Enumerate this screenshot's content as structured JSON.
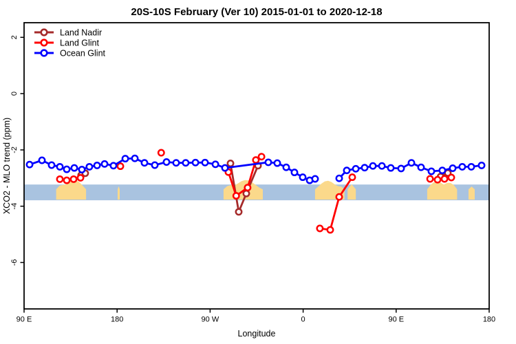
{
  "title": "20S-10S February (Ver 10)   2015-01-01 to 2020-12-18",
  "chart_data": {
    "type": "line",
    "title": "20S-10S February (Ver 10)   2015-01-01 to 2020-12-18",
    "xlabel": "Longitude",
    "ylabel": "XCO2 - MLO trend (ppm)",
    "x_axis": {
      "domain_deg": [
        0,
        450
      ],
      "ticks_deg": [
        0,
        90,
        180,
        270,
        360,
        450
      ],
      "tick_labels": [
        "90 E",
        "180",
        "90 W",
        "0",
        "90 E",
        "180"
      ],
      "note": "longitude axis starts at 90E and wraps across the dateline to 180"
    },
    "y_axis": {
      "lim": [
        -7.65,
        2.52
      ],
      "ticks": [
        2,
        0,
        -2,
        -4,
        -6
      ]
    },
    "legend": [
      {
        "name": "Land Nadir",
        "color": "#A52A2A"
      },
      {
        "name": "Land Glint",
        "color": "#FF0000"
      },
      {
        "name": "Ocean Glint",
        "color": "#0000FF"
      }
    ],
    "grid": false,
    "legend_position": "top-left-inside",
    "series": [
      {
        "name": "Land Nadir",
        "color": "#A52A2A",
        "segments": [
          [
            [
              55.2,
              -2.9
            ],
            [
              59.2,
              -2.83
            ]
          ],
          [
            [
              199.7,
              -2.48
            ],
            [
              207.7,
              -4.2
            ],
            [
              215.0,
              -3.55
            ],
            [
              226.3,
              -2.56
            ]
          ],
          [
            [
              403.0,
              -2.95
            ],
            [
              410.0,
              -2.82
            ]
          ]
        ]
      },
      {
        "name": "Land Glint",
        "color": "#FF0000",
        "segments": [
          [
            [
              34.6,
              -3.04
            ],
            [
              41.3,
              -3.08
            ],
            [
              47.9,
              -3.04
            ],
            [
              54.6,
              -2.99
            ]
          ],
          [
            [
              93.2,
              -2.58
            ]
          ],
          [
            [
              132.7,
              -2.1
            ]
          ],
          [
            [
              197.7,
              -2.79
            ],
            [
              205.2,
              -3.63
            ],
            [
              216.3,
              -3.34
            ],
            [
              224.3,
              -2.36
            ],
            [
              229.7,
              -2.24
            ]
          ],
          [
            [
              286.2,
              -4.79
            ],
            [
              296.2,
              -4.84
            ],
            [
              304.9,
              -3.67
            ],
            [
              317.5,
              -2.97
            ]
          ],
          [
            [
              392.8,
              -3.03
            ],
            [
              400.1,
              -3.06
            ],
            [
              406.8,
              -3.03
            ],
            [
              413.4,
              -2.98
            ]
          ]
        ]
      },
      {
        "name": "Ocean Glint",
        "color": "#0000FF",
        "segments": [
          [
            [
              5.3,
              -2.52
            ],
            [
              17.3,
              -2.37
            ],
            [
              26.6,
              -2.54
            ],
            [
              34.6,
              -2.6
            ],
            [
              41.3,
              -2.69
            ],
            [
              48.6,
              -2.64
            ],
            [
              55.9,
              -2.7
            ],
            [
              63.2,
              -2.6
            ],
            [
              70.6,
              -2.55
            ],
            [
              77.9,
              -2.5
            ],
            [
              86.5,
              -2.56
            ],
            [
              97.9,
              -2.31
            ],
            [
              107.2,
              -2.3
            ],
            [
              116.5,
              -2.46
            ],
            [
              126.5,
              -2.54
            ],
            [
              137.8,
              -2.43
            ],
            [
              147.1,
              -2.46
            ],
            [
              156.4,
              -2.46
            ],
            [
              165.8,
              -2.45
            ],
            [
              175.1,
              -2.45
            ],
            [
              185.1,
              -2.51
            ],
            [
              194.4,
              -2.64
            ],
            [
              236.3,
              -2.44
            ],
            [
              245.0,
              -2.47
            ],
            [
              253.6,
              -2.62
            ],
            [
              261.6,
              -2.8
            ],
            [
              269.6,
              -2.97
            ],
            [
              276.3,
              -3.08
            ],
            [
              281.6,
              -3.03
            ]
          ],
          [
            [
              304.9,
              -3.01
            ],
            [
              312.2,
              -2.73
            ],
            [
              320.9,
              -2.67
            ],
            [
              329.5,
              -2.63
            ],
            [
              337.5,
              -2.57
            ],
            [
              346.2,
              -2.57
            ],
            [
              354.8,
              -2.64
            ],
            [
              364.8,
              -2.66
            ],
            [
              374.8,
              -2.46
            ],
            [
              384.1,
              -2.62
            ],
            [
              394.1,
              -2.76
            ],
            [
              404.7,
              -2.73
            ],
            [
              414.7,
              -2.65
            ],
            [
              424.0,
              -2.6
            ],
            [
              432.7,
              -2.6
            ],
            [
              442.7,
              -2.55
            ]
          ]
        ]
      }
    ],
    "map_strip": {
      "ocean_color": "#A9C3E0",
      "land_color": "#FBD98B",
      "y_range_ppm": [
        -3.79,
        -3.23
      ],
      "land_patches_deg": [
        {
          "range": [
            31,
            60
          ],
          "peak": 8
        },
        {
          "range": [
            90.5,
            92.5
          ],
          "peak": 1
        },
        {
          "range": [
            193,
            231
          ],
          "peak": 7
        },
        {
          "range": [
            281.5,
            310
          ],
          "peak": 6
        },
        {
          "range": [
            313,
            321
          ],
          "peak": 2
        },
        {
          "range": [
            390,
            419
          ],
          "peak": 8
        },
        {
          "range": [
            430,
            436
          ],
          "peak": 1
        }
      ]
    }
  }
}
